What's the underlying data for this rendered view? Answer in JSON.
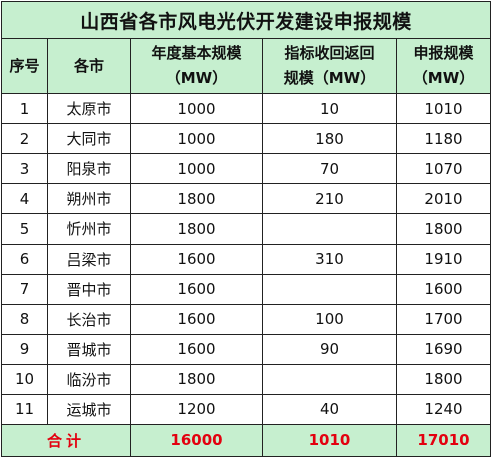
{
  "title": "山西省各市风电光伏开发建设申报规模",
  "headers": {
    "seq": "序号",
    "city": "各市",
    "base_line1": "年度基本规模",
    "base_line2": "（MW）",
    "ret_line1": "指标收回返回",
    "ret_line2": "规模（MW）",
    "app_line1": "申报规模",
    "app_line2": "（MW）"
  },
  "rows": [
    {
      "seq": "1",
      "city": "太原市",
      "base": "1000",
      "ret": "10",
      "app": "1010"
    },
    {
      "seq": "2",
      "city": "大同市",
      "base": "1000",
      "ret": "180",
      "app": "1180"
    },
    {
      "seq": "3",
      "city": "阳泉市",
      "base": "1000",
      "ret": "70",
      "app": "1070"
    },
    {
      "seq": "4",
      "city": "朔州市",
      "base": "1800",
      "ret": "210",
      "app": "2010"
    },
    {
      "seq": "5",
      "city": "忻州市",
      "base": "1800",
      "ret": "",
      "app": "1800"
    },
    {
      "seq": "6",
      "city": "吕梁市",
      "base": "1600",
      "ret": "310",
      "app": "1910"
    },
    {
      "seq": "7",
      "city": "晋中市",
      "base": "1600",
      "ret": "",
      "app": "1600"
    },
    {
      "seq": "8",
      "city": "长治市",
      "base": "1600",
      "ret": "100",
      "app": "1700"
    },
    {
      "seq": "9",
      "city": "晋城市",
      "base": "1600",
      "ret": "90",
      "app": "1690"
    },
    {
      "seq": "10",
      "city": "临汾市",
      "base": "1800",
      "ret": "",
      "app": "1800"
    },
    {
      "seq": "11",
      "city": "运城市",
      "base": "1200",
      "ret": "40",
      "app": "1240"
    }
  ],
  "total": {
    "label": "合计",
    "base": "16000",
    "ret": "1010",
    "app": "17010"
  },
  "colors": {
    "header_bg": "#c6efcf",
    "total_text": "#e3000f"
  }
}
